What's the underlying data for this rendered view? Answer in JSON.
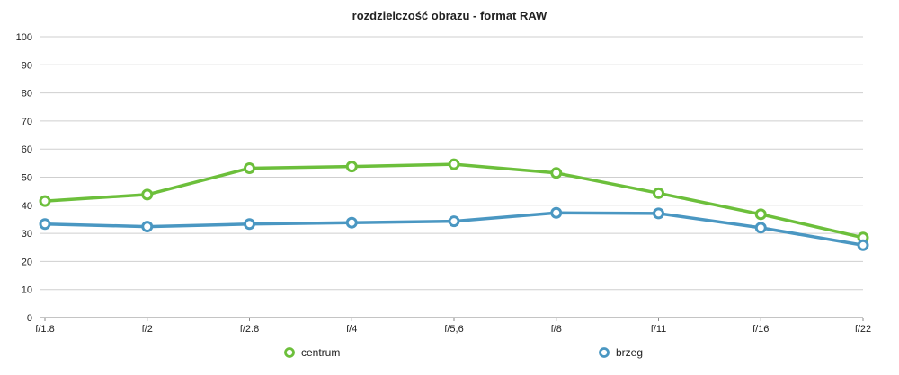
{
  "chart_data": {
    "type": "line",
    "title": "rozdzielczość obrazu - format RAW",
    "xlabel": "",
    "ylabel": "",
    "categories": [
      "f/1.8",
      "f/2",
      "f/2.8",
      "f/4",
      "f/5,6",
      "f/8",
      "f/11",
      "f/16",
      "f/22"
    ],
    "ylim": [
      0,
      100
    ],
    "yticks": [
      "0",
      "10",
      "20",
      "30",
      "40",
      "50",
      "60",
      "70",
      "80",
      "90",
      "100"
    ],
    "grid": true,
    "legend_position": "bottom",
    "series": [
      {
        "name": "centrum",
        "color": "#6cbf3b",
        "values": [
          41.5,
          43.8,
          53.2,
          53.8,
          54.6,
          51.5,
          44.3,
          36.8,
          28.5
        ]
      },
      {
        "name": "brzeg",
        "color": "#4a97c2",
        "values": [
          33.3,
          32.4,
          33.3,
          33.8,
          34.3,
          37.3,
          37.1,
          32.0,
          25.8
        ]
      }
    ]
  }
}
